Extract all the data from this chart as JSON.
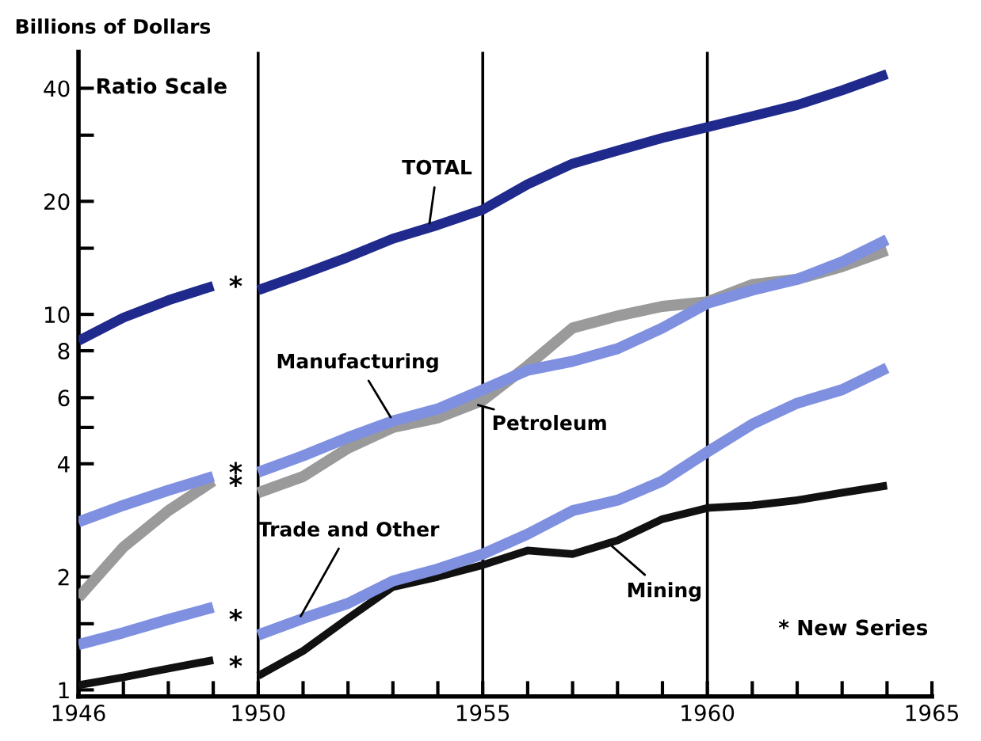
{
  "chart_data": {
    "type": "line",
    "ylabel": "Billions of Dollars",
    "log": "y",
    "legend": false,
    "grid": false,
    "marker": "none",
    "line_style": "solid",
    "x": [
      1946,
      1947,
      1948,
      1949,
      1949.5,
      1950,
      1951,
      1952,
      1953,
      1954,
      1955,
      1956,
      1957,
      1958,
      1959,
      1960,
      1961,
      1962,
      1963,
      1964
    ],
    "series": [
      {
        "name": "TOTAL",
        "color": "#1f2a8c",
        "values": [
          8.5,
          9.8,
          10.9,
          11.9,
          null,
          11.6,
          12.8,
          14.2,
          15.9,
          17.3,
          19.0,
          22.2,
          25.2,
          27.3,
          29.5,
          31.5,
          33.7,
          36.1,
          39.5,
          43.6
        ]
      },
      {
        "name": "Manufacturing",
        "color": "#7f90e0",
        "values": [
          2.8,
          3.1,
          3.4,
          3.7,
          null,
          3.8,
          4.2,
          4.7,
          5.2,
          5.6,
          6.3,
          7.1,
          7.5,
          8.1,
          9.2,
          10.7,
          11.6,
          12.4,
          13.8,
          15.8
        ]
      },
      {
        "name": "Petroleum",
        "color": "#9a9a9a",
        "values": [
          1.76,
          2.4,
          3.0,
          3.6,
          null,
          3.35,
          3.7,
          4.4,
          5.0,
          5.3,
          5.9,
          7.3,
          9.2,
          9.9,
          10.5,
          10.8,
          12.0,
          12.4,
          13.4,
          14.8
        ]
      },
      {
        "name": "Trade and Other",
        "color": "#7f90e0",
        "values": [
          1.32,
          1.42,
          1.54,
          1.66,
          null,
          1.4,
          1.55,
          1.7,
          1.95,
          2.1,
          2.3,
          2.6,
          3.0,
          3.2,
          3.6,
          4.3,
          5.1,
          5.8,
          6.3,
          7.2
        ]
      },
      {
        "name": "Mining",
        "color": "#111111",
        "values": [
          1.03,
          1.08,
          1.14,
          1.2,
          null,
          1.09,
          1.27,
          1.55,
          1.88,
          2.0,
          2.15,
          2.35,
          2.3,
          2.5,
          2.85,
          3.05,
          3.1,
          3.2,
          3.35,
          3.5
        ]
      }
    ],
    "xlim": [
      1946,
      1965
    ],
    "xticks": [
      1946,
      {
        "value": 1947,
        "label": null
      },
      {
        "value": 1948,
        "label": null
      },
      {
        "value": 1949,
        "label": null
      },
      1950,
      {
        "value": 1951,
        "label": null
      },
      {
        "value": 1952,
        "label": null
      },
      {
        "value": 1953,
        "label": null
      },
      {
        "value": 1954,
        "label": null
      },
      1955,
      {
        "value": 1956,
        "label": null
      },
      {
        "value": 1957,
        "label": null
      },
      {
        "value": 1958,
        "label": null
      },
      {
        "value": 1959,
        "label": null
      },
      1960,
      {
        "value": 1961,
        "label": null
      },
      {
        "value": 1962,
        "label": null
      },
      {
        "value": 1963,
        "label": null
      },
      {
        "value": 1964,
        "label": null
      },
      1965
    ],
    "ylim": [
      0.96,
      50
    ],
    "yticks": [
      1,
      {
        "value": 1.5,
        "label": null
      },
      2,
      4,
      {
        "value": 5,
        "label": null
      },
      6,
      8,
      10,
      {
        "value": 15,
        "label": null
      },
      20,
      {
        "value": 30,
        "label": null
      },
      40
    ],
    "ref_lines": [
      {
        "axis": "x",
        "value": 1950
      },
      {
        "axis": "x",
        "value": 1955
      },
      {
        "axis": "x",
        "value": 1960
      }
    ],
    "annotations": [
      "Ratio Scale",
      "* New Series",
      "*",
      "*",
      "*",
      "*",
      "*"
    ]
  }
}
